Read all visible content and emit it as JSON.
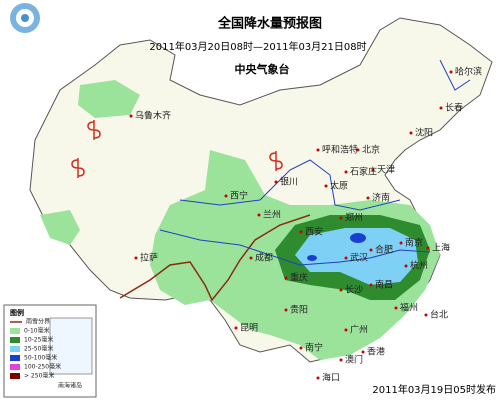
{
  "header": {
    "title": "全国降水量预报图",
    "subtitle": "2011年03月20日08时—2011年03月21日08时",
    "issuer": "中央气象台"
  },
  "legend": {
    "title": "图例",
    "boundary": "雨雪分界线",
    "items": [
      {
        "label": "0-10毫米",
        "color": "#9be39b"
      },
      {
        "label": "10-25毫米",
        "color": "#2e8b2e"
      },
      {
        "label": "25-50毫米",
        "color": "#7fd0f5"
      },
      {
        "label": "50-100毫米",
        "color": "#1a3fd0"
      },
      {
        "label": "100-250毫米",
        "color": "#e040e0"
      },
      {
        "label": "> 250毫米",
        "color": "#800000"
      }
    ]
  },
  "inset": {
    "label": "南海诸岛"
  },
  "cities": [
    "乌鲁木齐",
    "哈尔滨",
    "长春",
    "沈阳",
    "呼和浩特",
    "北京",
    "天津",
    "石家庄",
    "太原",
    "银川",
    "西宁",
    "兰州",
    "济南",
    "郑州",
    "西安",
    "合肥",
    "南京",
    "上海",
    "杭州",
    "武汉",
    "成都",
    "重庆",
    "拉萨",
    "长沙",
    "南昌",
    "贵阳",
    "昆明",
    "福州",
    "台北",
    "广州",
    "南宁",
    "香港",
    "澳门",
    "海口"
  ],
  "footer": {
    "issued": "2011年03月19日05时发布"
  }
}
